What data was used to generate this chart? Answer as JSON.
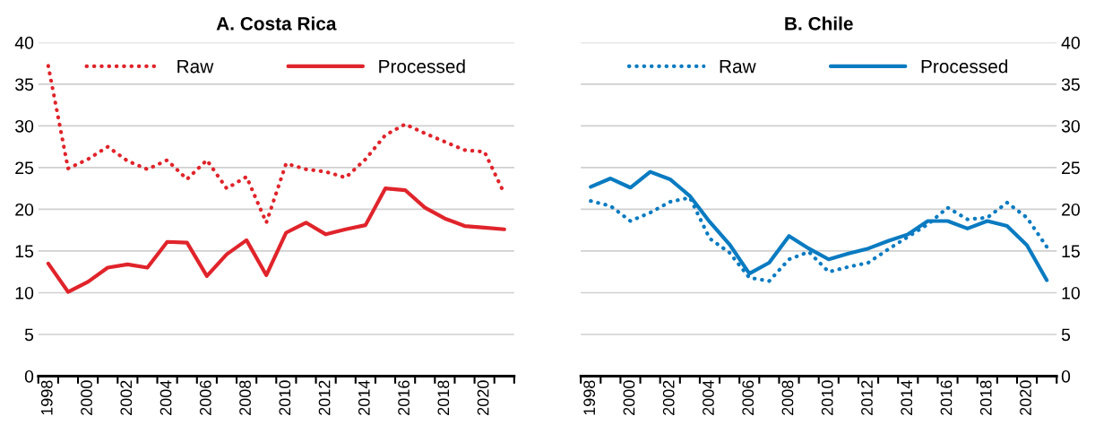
{
  "chart_data": [
    {
      "type": "line",
      "title": "A. Costa Rica",
      "categories": [
        "1998",
        null,
        "2000",
        null,
        "2002",
        null,
        "2004",
        null,
        "2006",
        null,
        "2008",
        null,
        "2010",
        null,
        "2012",
        null,
        "2014",
        null,
        "2016",
        null,
        "2018",
        null,
        "2020",
        null
      ],
      "series": [
        {
          "name": "Raw",
          "color": "#e0242b",
          "line_style": "dotted",
          "values": [
            37.2,
            24.9,
            26.0,
            27.5,
            25.8,
            24.8,
            25.9,
            23.6,
            25.9,
            22.5,
            23.9,
            18.4,
            25.5,
            24.8,
            24.5,
            23.8,
            26.0,
            28.9,
            30.2,
            29.1,
            28.1,
            27.1,
            26.9,
            21.9
          ]
        },
        {
          "name": "Processed",
          "color": "#e0242b",
          "line_style": "solid",
          "values": [
            13.5,
            10.1,
            11.3,
            13.0,
            13.4,
            13.0,
            16.1,
            16.0,
            12.0,
            14.6,
            16.3,
            12.1,
            17.2,
            18.4,
            17.0,
            17.6,
            18.1,
            22.5,
            22.3,
            20.2,
            18.9,
            18.0,
            17.8,
            17.6
          ]
        }
      ],
      "ylim": [
        0,
        40
      ],
      "yticks": [
        0,
        5,
        10,
        15,
        20,
        25,
        30,
        35,
        40
      ],
      "grid": "y",
      "legend": "top"
    },
    {
      "type": "line",
      "title": "B. Chile",
      "categories": [
        "1998",
        null,
        "2000",
        null,
        "2002",
        null,
        "2004",
        null,
        "2006",
        null,
        "2008",
        null,
        "2010",
        null,
        "2012",
        null,
        "2014",
        null,
        "2016",
        null,
        "2018",
        null,
        "2020",
        null
      ],
      "series": [
        {
          "name": "Raw",
          "color": "#0a7bc1",
          "line_style": "dotted",
          "axis": "y2",
          "values": [
            21.0,
            20.4,
            18.6,
            19.6,
            20.9,
            21.4,
            16.5,
            14.8,
            11.8,
            11.4,
            14.0,
            14.9,
            12.5,
            13.1,
            13.6,
            15.2,
            16.7,
            18.2,
            20.2,
            18.8,
            19.0,
            20.8,
            19.0,
            15.5
          ]
        },
        {
          "name": "Processed",
          "color": "#0a7bc1",
          "line_style": "solid",
          "axis": "y2",
          "values": [
            22.7,
            23.7,
            22.6,
            24.5,
            23.6,
            21.6,
            18.5,
            15.8,
            12.3,
            13.6,
            16.8,
            15.3,
            14.0,
            14.7,
            15.3,
            16.2,
            17.0,
            18.6,
            18.6,
            17.7,
            18.6,
            18.0,
            15.7,
            11.5
          ]
        }
      ],
      "y2lim": [
        0,
        40
      ],
      "y2ticks": [
        0,
        5,
        10,
        15,
        20,
        25,
        30,
        35,
        40
      ],
      "grid": "y",
      "legend": "top"
    }
  ]
}
